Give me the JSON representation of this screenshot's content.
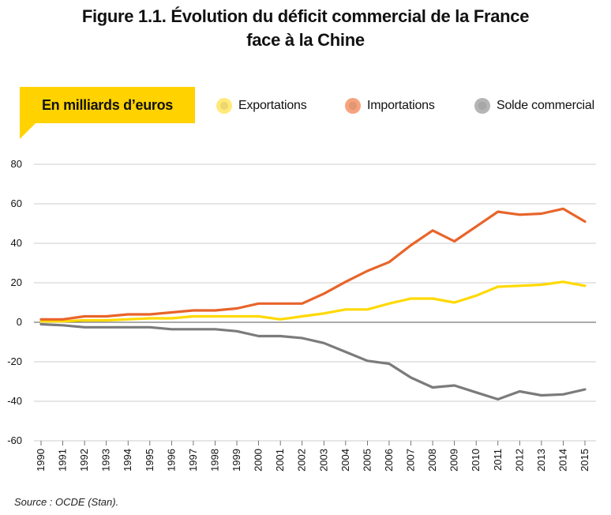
{
  "title_line1": "Figure 1.1. Évolution du déficit commercial de la France",
  "title_line2": "face à la Chine",
  "unit_label": "En milliards d’euros",
  "source": "Source : OCDE (Stan).",
  "colors": {
    "exports": "#FFD900",
    "imports": "#E8642A",
    "balance": "#7B7B7B",
    "unit_box": "#FFD200",
    "grid": "#bdbdbd"
  },
  "chart_data": {
    "type": "line",
    "title": "Figure 1.1. Évolution du déficit commercial de la France face à la Chine",
    "ylabel": "En milliards d’euros",
    "xlabel": "",
    "ylim": [
      -60,
      80
    ],
    "yticks": [
      80,
      60,
      40,
      20,
      0,
      -20,
      -40,
      -60
    ],
    "grid": "horizontal",
    "legend": "top",
    "x": [
      "1990",
      "1991",
      "1992",
      "1993",
      "1994",
      "1995",
      "1996",
      "1997",
      "1998",
      "1999",
      "2000",
      "2001",
      "2002",
      "2003",
      "2004",
      "2005",
      "2006",
      "2007",
      "2008",
      "2009",
      "2010",
      "2011",
      "2012",
      "2013",
      "2014",
      "2015"
    ],
    "series": [
      {
        "name": "Exportations",
        "color": "#FFD900",
        "values": [
          0.5,
          0.5,
          1,
          1,
          1.5,
          2,
          2,
          3,
          3,
          3,
          3,
          1.5,
          3,
          4.5,
          6.5,
          6.5,
          9.5,
          12,
          12,
          10,
          13.5,
          18,
          18.5,
          19,
          20.5,
          18.5
        ]
      },
      {
        "name": "Importations",
        "color": "#E8642A",
        "values": [
          1.5,
          1.5,
          3,
          3,
          4,
          4,
          5,
          6,
          6,
          7,
          9.5,
          9.5,
          9.5,
          14.5,
          20.5,
          26,
          30.5,
          39,
          46.5,
          41,
          48.5,
          56,
          54.5,
          55,
          57.5,
          51
        ]
      },
      {
        "name": "Solde commercial",
        "color": "#7B7B7B",
        "values": [
          -1,
          -1.5,
          -2.5,
          -2.5,
          -2.5,
          -2.5,
          -3.5,
          -3.5,
          -3.5,
          -4.5,
          -7,
          -7,
          -8,
          -10.5,
          -15,
          -19.5,
          -21,
          -28,
          -33,
          -32,
          -35.5,
          -39,
          -35,
          -37,
          -36.5,
          -34
        ]
      }
    ]
  }
}
